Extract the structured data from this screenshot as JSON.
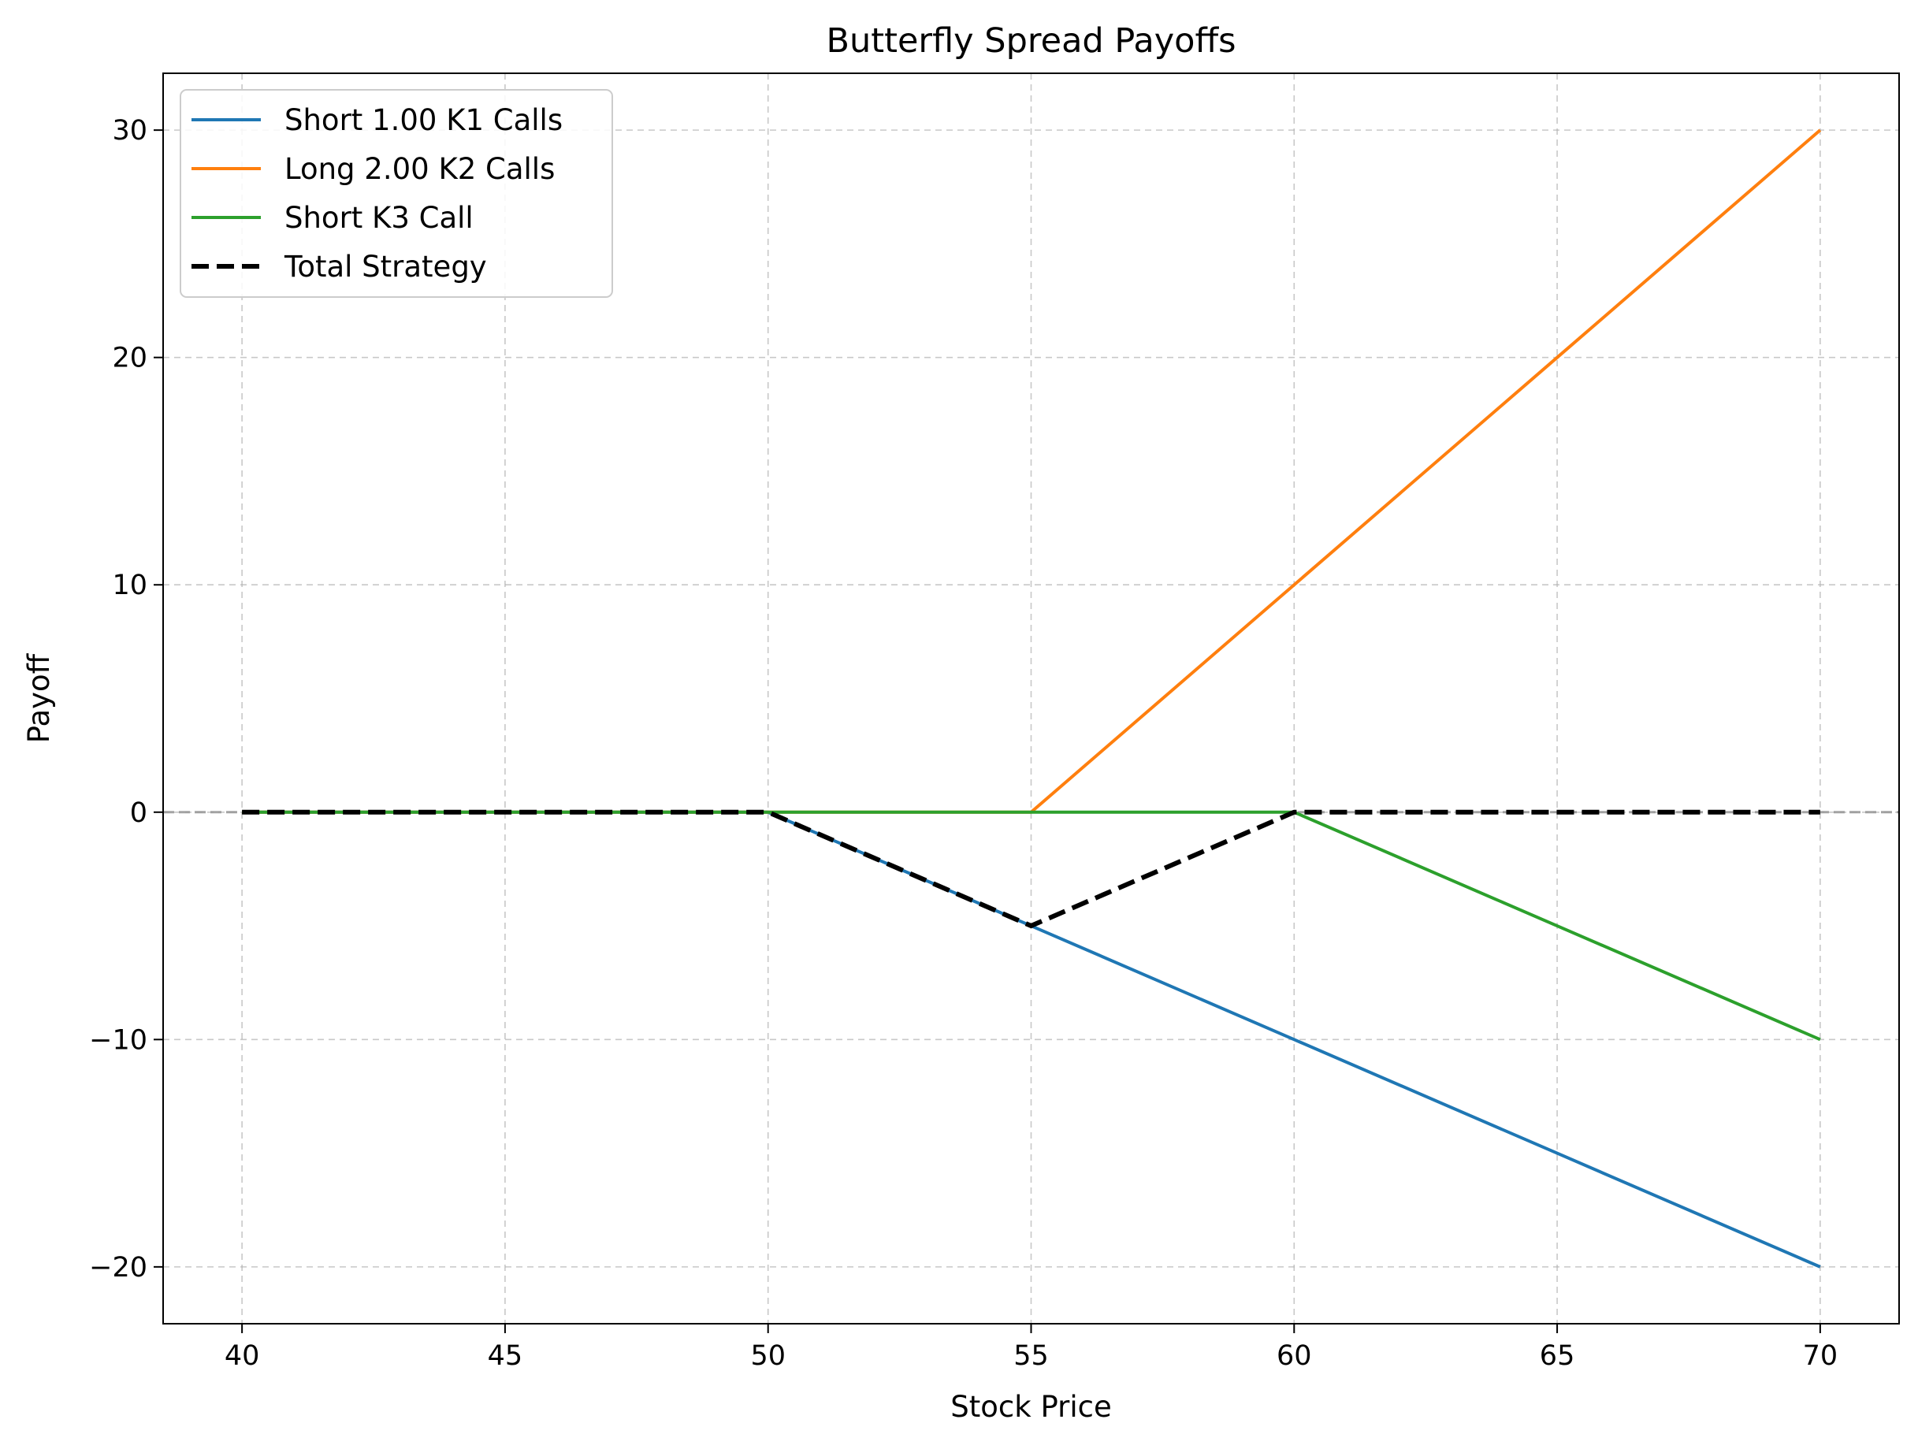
{
  "chart_data": {
    "type": "line",
    "title": "Butterfly Spread Payoffs",
    "xlabel": "Stock Price",
    "ylabel": "Payoff",
    "xlim": [
      38.5,
      71.5
    ],
    "ylim": [
      -22.5,
      32.5
    ],
    "xticks": [
      40,
      45,
      50,
      55,
      60,
      65,
      70
    ],
    "yticks": [
      -20,
      -10,
      0,
      10,
      20,
      30
    ],
    "xtick_labels": [
      "40",
      "45",
      "50",
      "55",
      "60",
      "65",
      "70"
    ],
    "ytick_labels": [
      "−20",
      "−10",
      "0",
      "10",
      "20",
      "30"
    ],
    "grid": true,
    "grid_style": "dashed",
    "zero_reference_line": true,
    "legend_position": "upper-left",
    "series": [
      {
        "name": "Short 1.00 K1 Calls",
        "color": "#1f77b4",
        "style": "solid",
        "x": [
          40,
          50,
          55,
          60,
          65,
          70
        ],
        "y": [
          0,
          0,
          -5,
          -10,
          -15,
          -20
        ]
      },
      {
        "name": "Long 2.00 K2 Calls",
        "color": "#ff7f0e",
        "style": "solid",
        "x": [
          40,
          55,
          60,
          65,
          70
        ],
        "y": [
          0,
          0,
          10,
          20,
          30
        ]
      },
      {
        "name": "Short K3 Call",
        "color": "#2ca02c",
        "style": "solid",
        "x": [
          40,
          60,
          65,
          70
        ],
        "y": [
          0,
          0,
          -5,
          -10
        ]
      },
      {
        "name": "Total Strategy",
        "color": "#000000",
        "style": "dashed",
        "x": [
          40,
          50,
          55,
          60,
          70
        ],
        "y": [
          0,
          0,
          -5,
          0,
          0
        ]
      }
    ]
  }
}
